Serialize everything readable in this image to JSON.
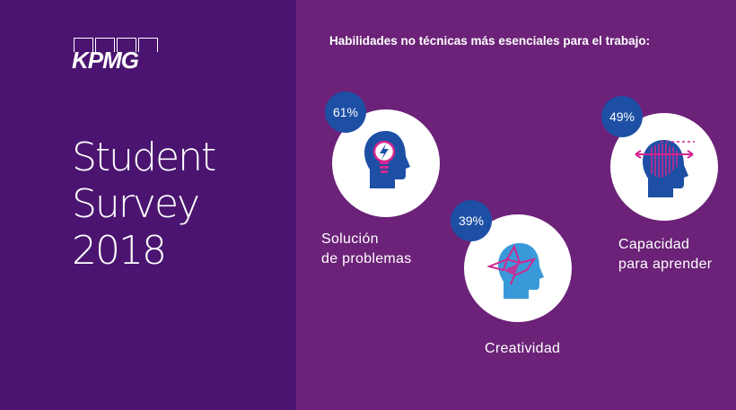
{
  "brand": {
    "name": "KPMG"
  },
  "sidebar": {
    "title_lines": [
      "Student",
      "Survey",
      "2018"
    ]
  },
  "main": {
    "heading": "Habilidades no técnicas más esenciales para el trabajo:",
    "skills": [
      {
        "percent": "61%",
        "label_lines": [
          "Solución",
          "de problemas"
        ],
        "icon": "head-lightbulb-icon"
      },
      {
        "percent": "39%",
        "label_lines": [
          "Creatividad"
        ],
        "icon": "head-origami-bird-icon"
      },
      {
        "percent": "49%",
        "label_lines": [
          "Capacidad",
          "para aprender"
        ],
        "icon": "head-learning-arrows-icon"
      }
    ]
  },
  "colors": {
    "left_panel": "#4a1470",
    "right_panel": "#6b2278",
    "badge": "#1d4fa5",
    "icon_dark_blue": "#1d4fa5",
    "icon_light_blue": "#3a9ad9",
    "icon_magenta": "#d3268f"
  }
}
